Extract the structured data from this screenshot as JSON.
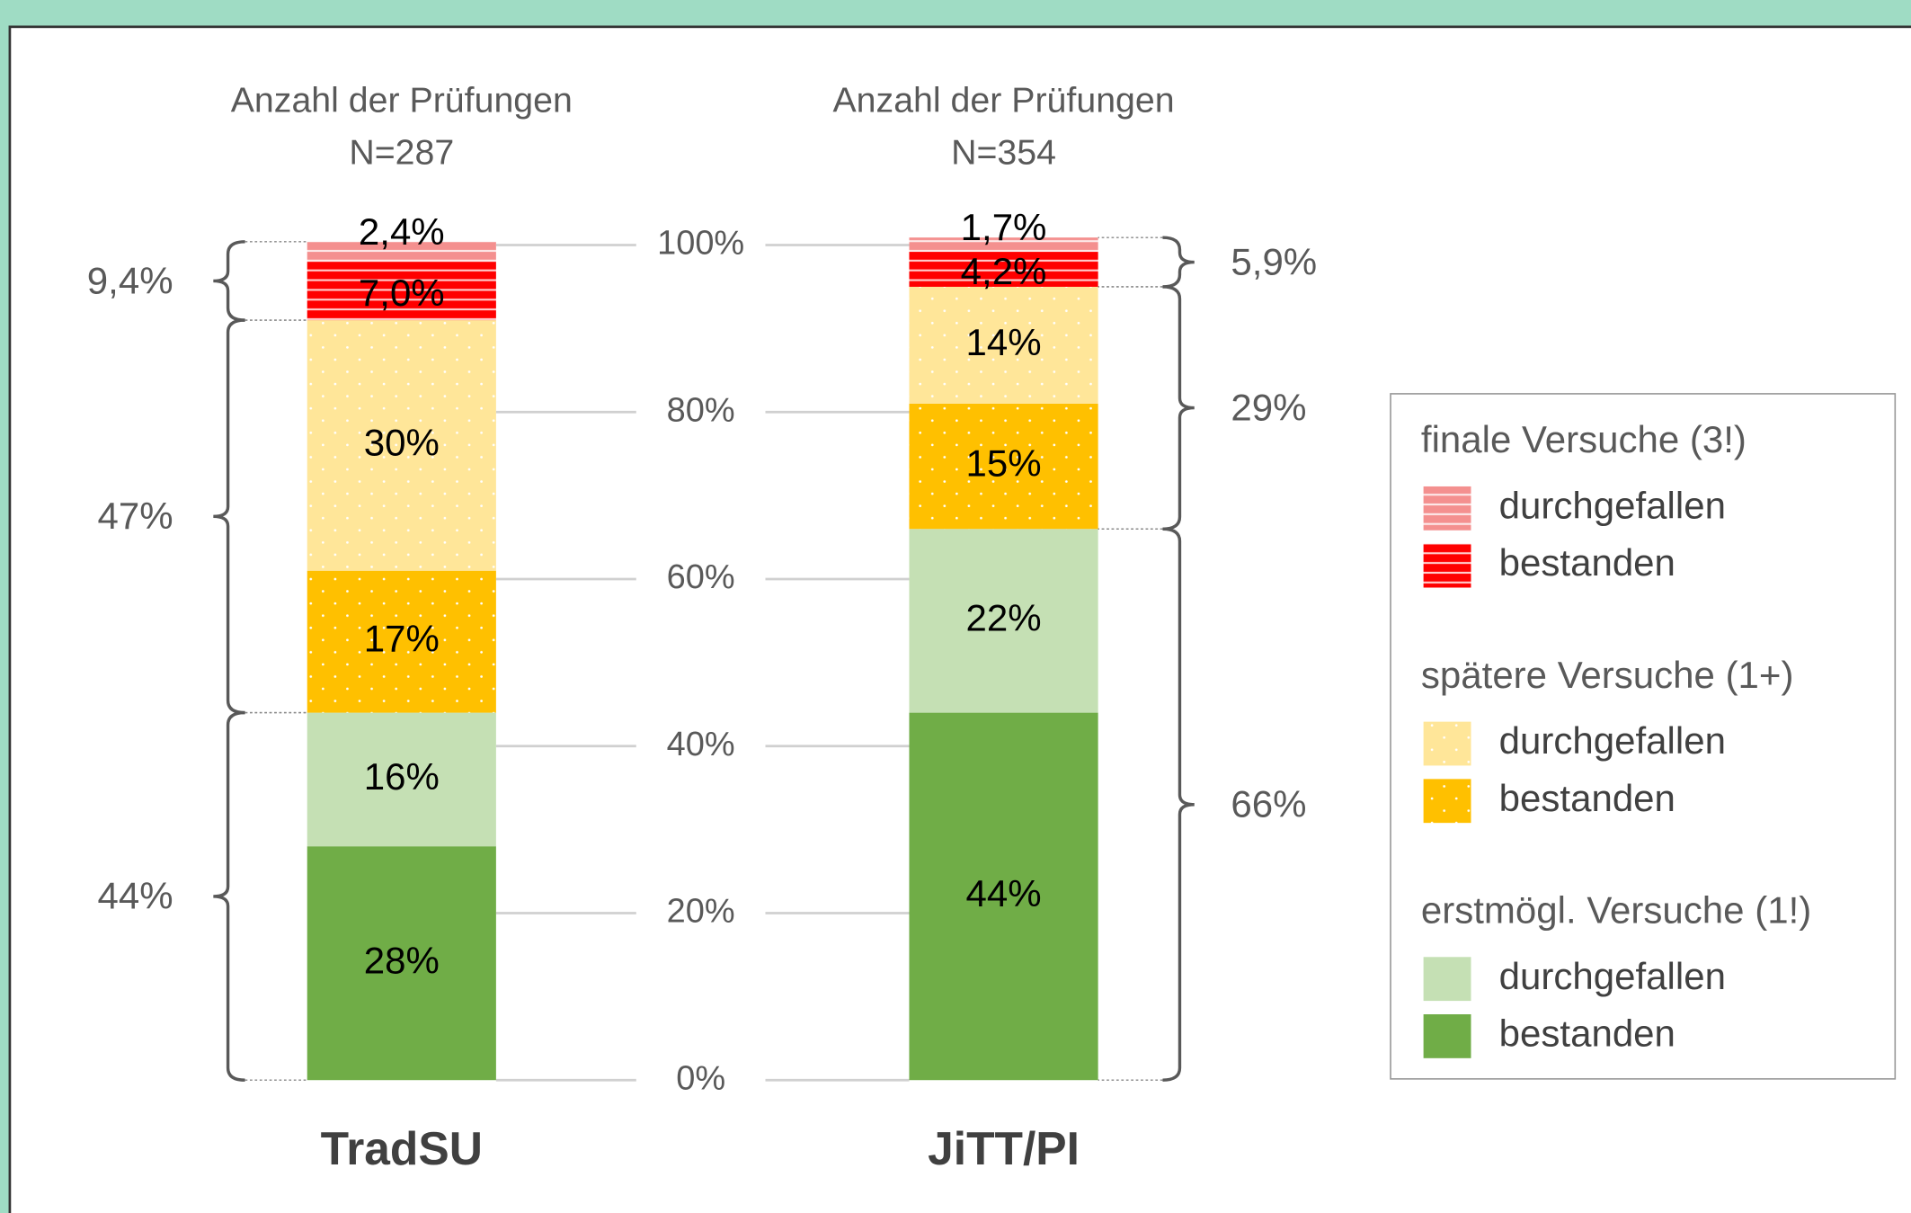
{
  "chart_data": {
    "type": "stacked_bar",
    "categories": [
      "TradSU",
      "JiTT/PI"
    ],
    "category_subtitles": [
      [
        "Anzahl der Prüfungen",
        "N=287"
      ],
      [
        "Anzahl der Prüfungen",
        "N=354"
      ]
    ],
    "groups": [
      {
        "title": "finale Versuche (3!)",
        "pattern": "stripes",
        "series": [
          {
            "name": "durchgefallen",
            "color": "#f4908f",
            "values": [
              2.4,
              1.7
            ],
            "value_labels": [
              "2,4%",
              "1,7%"
            ]
          },
          {
            "name": "bestanden",
            "color": "#ff0000",
            "values": [
              7.0,
              4.2
            ],
            "value_labels": [
              "7,0%",
              "4,2%"
            ]
          }
        ]
      },
      {
        "title": "spätere Versuche (1+)",
        "pattern": "dots",
        "series": [
          {
            "name": "durchgefallen",
            "color": "#ffe699",
            "values": [
              30,
              14
            ],
            "value_labels": [
              "30%",
              "14%"
            ]
          },
          {
            "name": "bestanden",
            "color": "#ffc000",
            "values": [
              17,
              15
            ],
            "value_labels": [
              "17%",
              "15%"
            ]
          }
        ]
      },
      {
        "title": "erstmögl. Versuche (1!)",
        "pattern": "none",
        "series": [
          {
            "name": "durchgefallen",
            "color": "#c5e0b4",
            "values": [
              16,
              22
            ],
            "value_labels": [
              "16%",
              "22%"
            ]
          },
          {
            "name": "bestanden",
            "color": "#70ad47",
            "values": [
              28,
              44
            ],
            "value_labels": [
              "28%",
              "44%"
            ]
          }
        ]
      }
    ],
    "bracket_values": [
      [
        9.4,
        47,
        44
      ],
      [
        5.9,
        29,
        66
      ]
    ],
    "bracket_labels": [
      [
        "9,4%",
        "47%",
        "44%"
      ],
      [
        "5,9%",
        "29%",
        "66%"
      ]
    ],
    "ylim": [
      0,
      100
    ],
    "yticks": [
      {
        "value": 0,
        "label": "0%"
      },
      {
        "value": 20,
        "label": "20%"
      },
      {
        "value": 40,
        "label": "40%"
      },
      {
        "value": 60,
        "label": "60%"
      },
      {
        "value": 80,
        "label": "80%"
      },
      {
        "value": 100,
        "label": "100%"
      }
    ],
    "grid": true
  }
}
